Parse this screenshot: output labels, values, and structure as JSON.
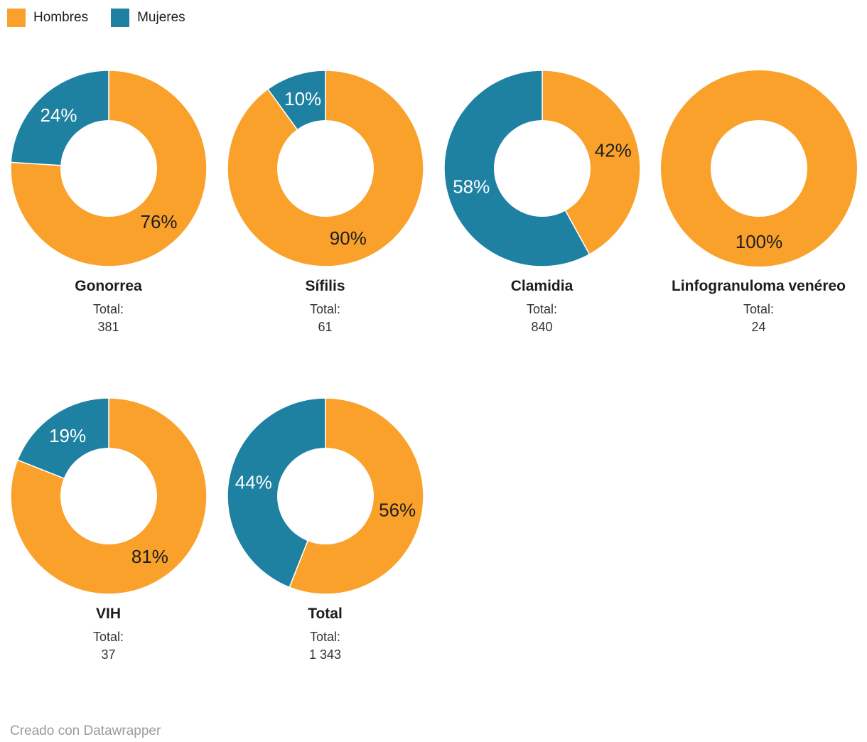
{
  "legend": {
    "items": [
      {
        "name": "Hombres",
        "label": "Hombres",
        "color": "#FAA12B"
      },
      {
        "name": "Mujeres",
        "label": "Mujeres",
        "color": "#1E81A2"
      }
    ]
  },
  "chart_data": [
    {
      "type": "pie",
      "title": "Gonorrea",
      "total_label": "Total:",
      "total_value": "381",
      "slices": [
        {
          "name": "Hombres",
          "pct": 76,
          "label": "76%",
          "label_color": "#1d1d1d"
        },
        {
          "name": "Mujeres",
          "pct": 24,
          "label": "24%",
          "label_color": "#ffffff"
        }
      ]
    },
    {
      "type": "pie",
      "title": "Sífilis",
      "total_label": "Total:",
      "total_value": "61",
      "slices": [
        {
          "name": "Hombres",
          "pct": 90,
          "label": "90%",
          "label_color": "#1d1d1d"
        },
        {
          "name": "Mujeres",
          "pct": 10,
          "label": "10%",
          "label_color": "#ffffff"
        }
      ]
    },
    {
      "type": "pie",
      "title": "Clamidia",
      "total_label": "Total:",
      "total_value": "840",
      "slices": [
        {
          "name": "Hombres",
          "pct": 42,
          "label": "42%",
          "label_color": "#1d1d1d"
        },
        {
          "name": "Mujeres",
          "pct": 58,
          "label": "58%",
          "label_color": "#ffffff"
        }
      ]
    },
    {
      "type": "pie",
      "title": "Linfogranuloma venéreo",
      "total_label": "Total:",
      "total_value": "24",
      "slices": [
        {
          "name": "Hombres",
          "pct": 100,
          "label": "100%",
          "label_color": "#1d1d1d"
        }
      ]
    },
    {
      "type": "pie",
      "title": "VIH",
      "total_label": "Total:",
      "total_value": "37",
      "slices": [
        {
          "name": "Hombres",
          "pct": 81,
          "label": "81%",
          "label_color": "#1d1d1d"
        },
        {
          "name": "Mujeres",
          "pct": 19,
          "label": "19%",
          "label_color": "#ffffff"
        }
      ]
    },
    {
      "type": "pie",
      "title": "Total",
      "total_label": "Total:",
      "total_value": "1 343",
      "slices": [
        {
          "name": "Hombres",
          "pct": 56,
          "label": "56%",
          "label_color": "#1d1d1d"
        },
        {
          "name": "Mujeres",
          "pct": 44,
          "label": "44%",
          "label_color": "#ffffff"
        }
      ]
    }
  ],
  "footer": {
    "attribution": "Creado con Datawrapper"
  }
}
